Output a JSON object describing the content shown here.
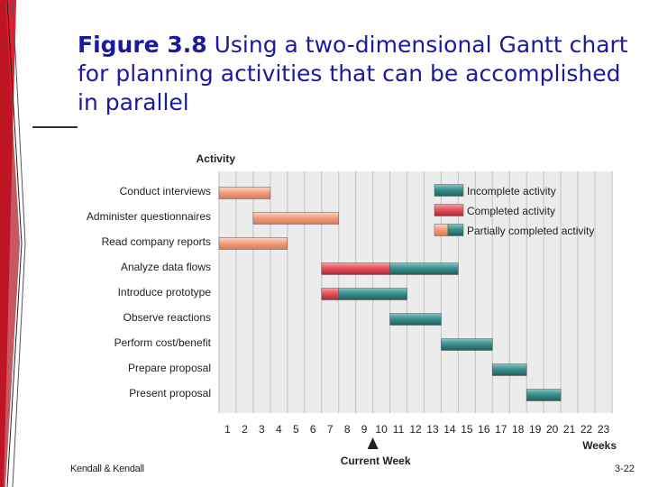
{
  "slide": {
    "title_fig": "Figure 3.8",
    "title_text": "Using a two-dimensional Gantt chart for planning activities that can be accomplished in parallel",
    "footer_left": "Kendall & Kendall",
    "footer_right": "3-22"
  },
  "chart_data": {
    "type": "gantt",
    "y_axis_title": "Activity",
    "x_axis_title": "Weeks",
    "current_week_label": "Current Week",
    "current_week": 9,
    "x_ticks": [
      1,
      2,
      3,
      4,
      5,
      6,
      7,
      8,
      9,
      10,
      11,
      12,
      13,
      14,
      15,
      16,
      17,
      18,
      19,
      20,
      21,
      22,
      23
    ],
    "xlim": [
      0.5,
      23.5
    ],
    "grid": true,
    "legend_position": "top-right",
    "legend": [
      {
        "status": "incomplete",
        "label": "Incomplete activity"
      },
      {
        "status": "completed",
        "label": "Completed activity"
      },
      {
        "status": "partial",
        "label": "Partially completed activity"
      }
    ],
    "colors": {
      "completed": "#e8505a",
      "incomplete": "#3a8f8d",
      "planned_done": "#f0a080",
      "grid": "#c8c8c8",
      "background": "#ececec"
    },
    "activities": [
      {
        "name": "Conduct interviews",
        "start": 1,
        "end": 4,
        "completed_until": 4
      },
      {
        "name": "Administer questionnaires",
        "start": 3,
        "end": 8,
        "completed_until": 8
      },
      {
        "name": "Read company reports",
        "start": 1,
        "end": 5,
        "completed_until": 5
      },
      {
        "name": "Analyze data flows",
        "start": 7,
        "end": 15,
        "completed_until": 11
      },
      {
        "name": "Introduce prototype",
        "start": 7,
        "end": 12,
        "completed_until": 8
      },
      {
        "name": "Observe reactions",
        "start": 11,
        "end": 14,
        "completed_until": 11
      },
      {
        "name": "Perform cost/benefit",
        "start": 14,
        "end": 17,
        "completed_until": 14
      },
      {
        "name": "Prepare proposal",
        "start": 17,
        "end": 19,
        "completed_until": 17
      },
      {
        "name": "Present proposal",
        "start": 19,
        "end": 21,
        "completed_until": 19
      }
    ]
  }
}
